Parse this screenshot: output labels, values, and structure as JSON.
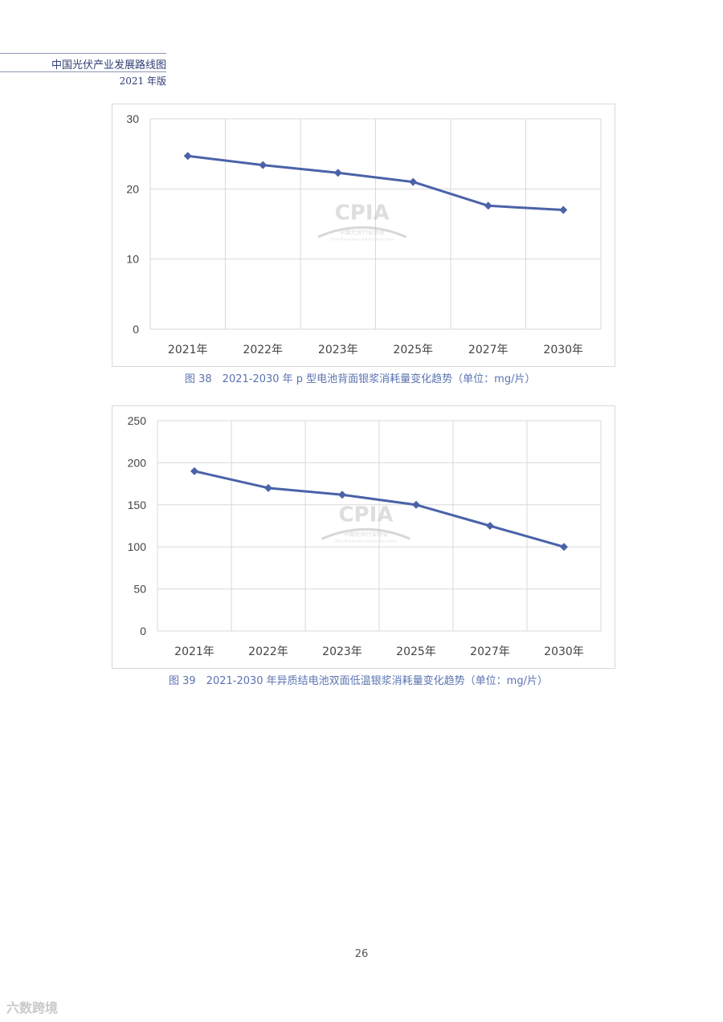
{
  "header": {
    "title": "中国光伏产业发展路线图",
    "edition": "2021 年版"
  },
  "watermark": {
    "logo": "CPIA",
    "name_cn": "中国光伏行业协会",
    "name_en": "China Photovoltaic Industry Association"
  },
  "page_number": "26",
  "corner_logo": "六数跨境",
  "colors": {
    "series": "#4a62a8",
    "grid": "#d9d9d9",
    "caption": "#5b73b0"
  },
  "chart_data": [
    {
      "type": "line",
      "categories": [
        "2021年",
        "2022年",
        "2023年",
        "2025年",
        "2027年",
        "2030年"
      ],
      "series": [
        {
          "values": [
            24.7,
            23.4,
            22.3,
            21.0,
            17.6,
            17.0
          ]
        }
      ],
      "ylim": [
        0,
        30
      ],
      "yticks": [
        0,
        10,
        20,
        30
      ],
      "caption": "图 38　2021-2030 年 p 型电池背面银浆消耗量变化趋势（单位：mg/片）",
      "grid": true
    },
    {
      "type": "line",
      "categories": [
        "2021年",
        "2022年",
        "2023年",
        "2025年",
        "2027年",
        "2030年"
      ],
      "series": [
        {
          "values": [
            190,
            170,
            162,
            150,
            125,
            100
          ]
        }
      ],
      "ylim": [
        0,
        250
      ],
      "yticks": [
        0,
        50,
        100,
        150,
        200,
        250
      ],
      "caption": "图 39　2021-2030 年异质结电池双面低温银浆消耗量变化趋势（单位：mg/片）",
      "grid": true
    }
  ]
}
